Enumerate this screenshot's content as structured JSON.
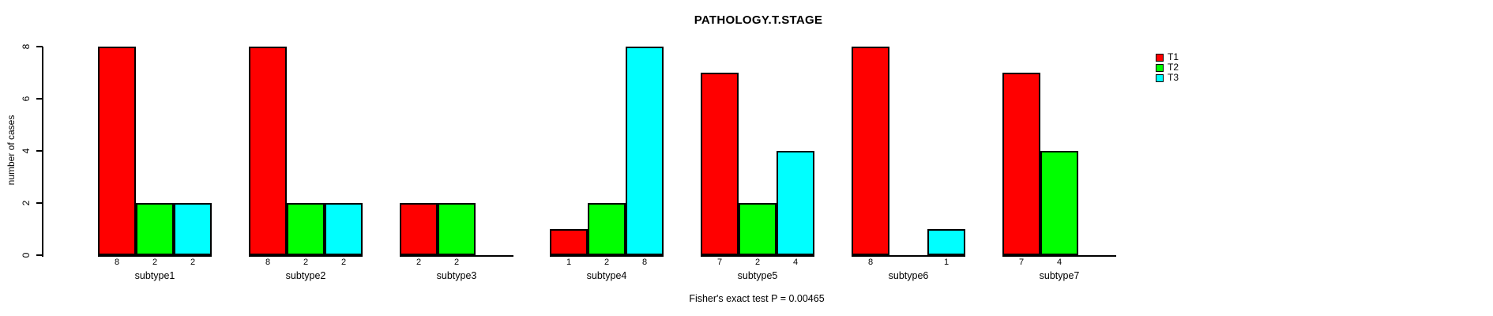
{
  "chart_data": {
    "type": "bar",
    "title": "PATHOLOGY.T.STAGE",
    "ylabel": "number of cases",
    "footer": "Fisher's exact test P = 0.00465",
    "categories": [
      "subtype1",
      "subtype2",
      "subtype3",
      "subtype4",
      "subtype5",
      "subtype6",
      "subtype7"
    ],
    "series": [
      {
        "name": "T1",
        "color": "#FF0000",
        "values": [
          8,
          8,
          2,
          1,
          7,
          8,
          7
        ]
      },
      {
        "name": "T2",
        "color": "#00FF00",
        "values": [
          2,
          2,
          2,
          2,
          2,
          0,
          4
        ]
      },
      {
        "name": "T3",
        "color": "#00FFFF",
        "values": [
          2,
          2,
          0,
          8,
          4,
          1,
          0
        ]
      }
    ],
    "bar_value_labels": [
      [
        "8",
        "2",
        "2"
      ],
      [
        "8",
        "2",
        "2"
      ],
      [
        "2",
        "2",
        ""
      ],
      [
        "1",
        "2",
        "8"
      ],
      [
        "7",
        "2",
        "4"
      ],
      [
        "8",
        "",
        "1"
      ],
      [
        "7",
        "4",
        ""
      ]
    ],
    "yticks": [
      "0",
      "2",
      "4",
      "6",
      "8"
    ],
    "ylim": [
      0,
      8
    ],
    "grid": false,
    "legend_position": "right",
    "legend": [
      "T1",
      "T2",
      "T3"
    ],
    "axis_color": "#000000",
    "background_color": "#FFFFFF"
  }
}
